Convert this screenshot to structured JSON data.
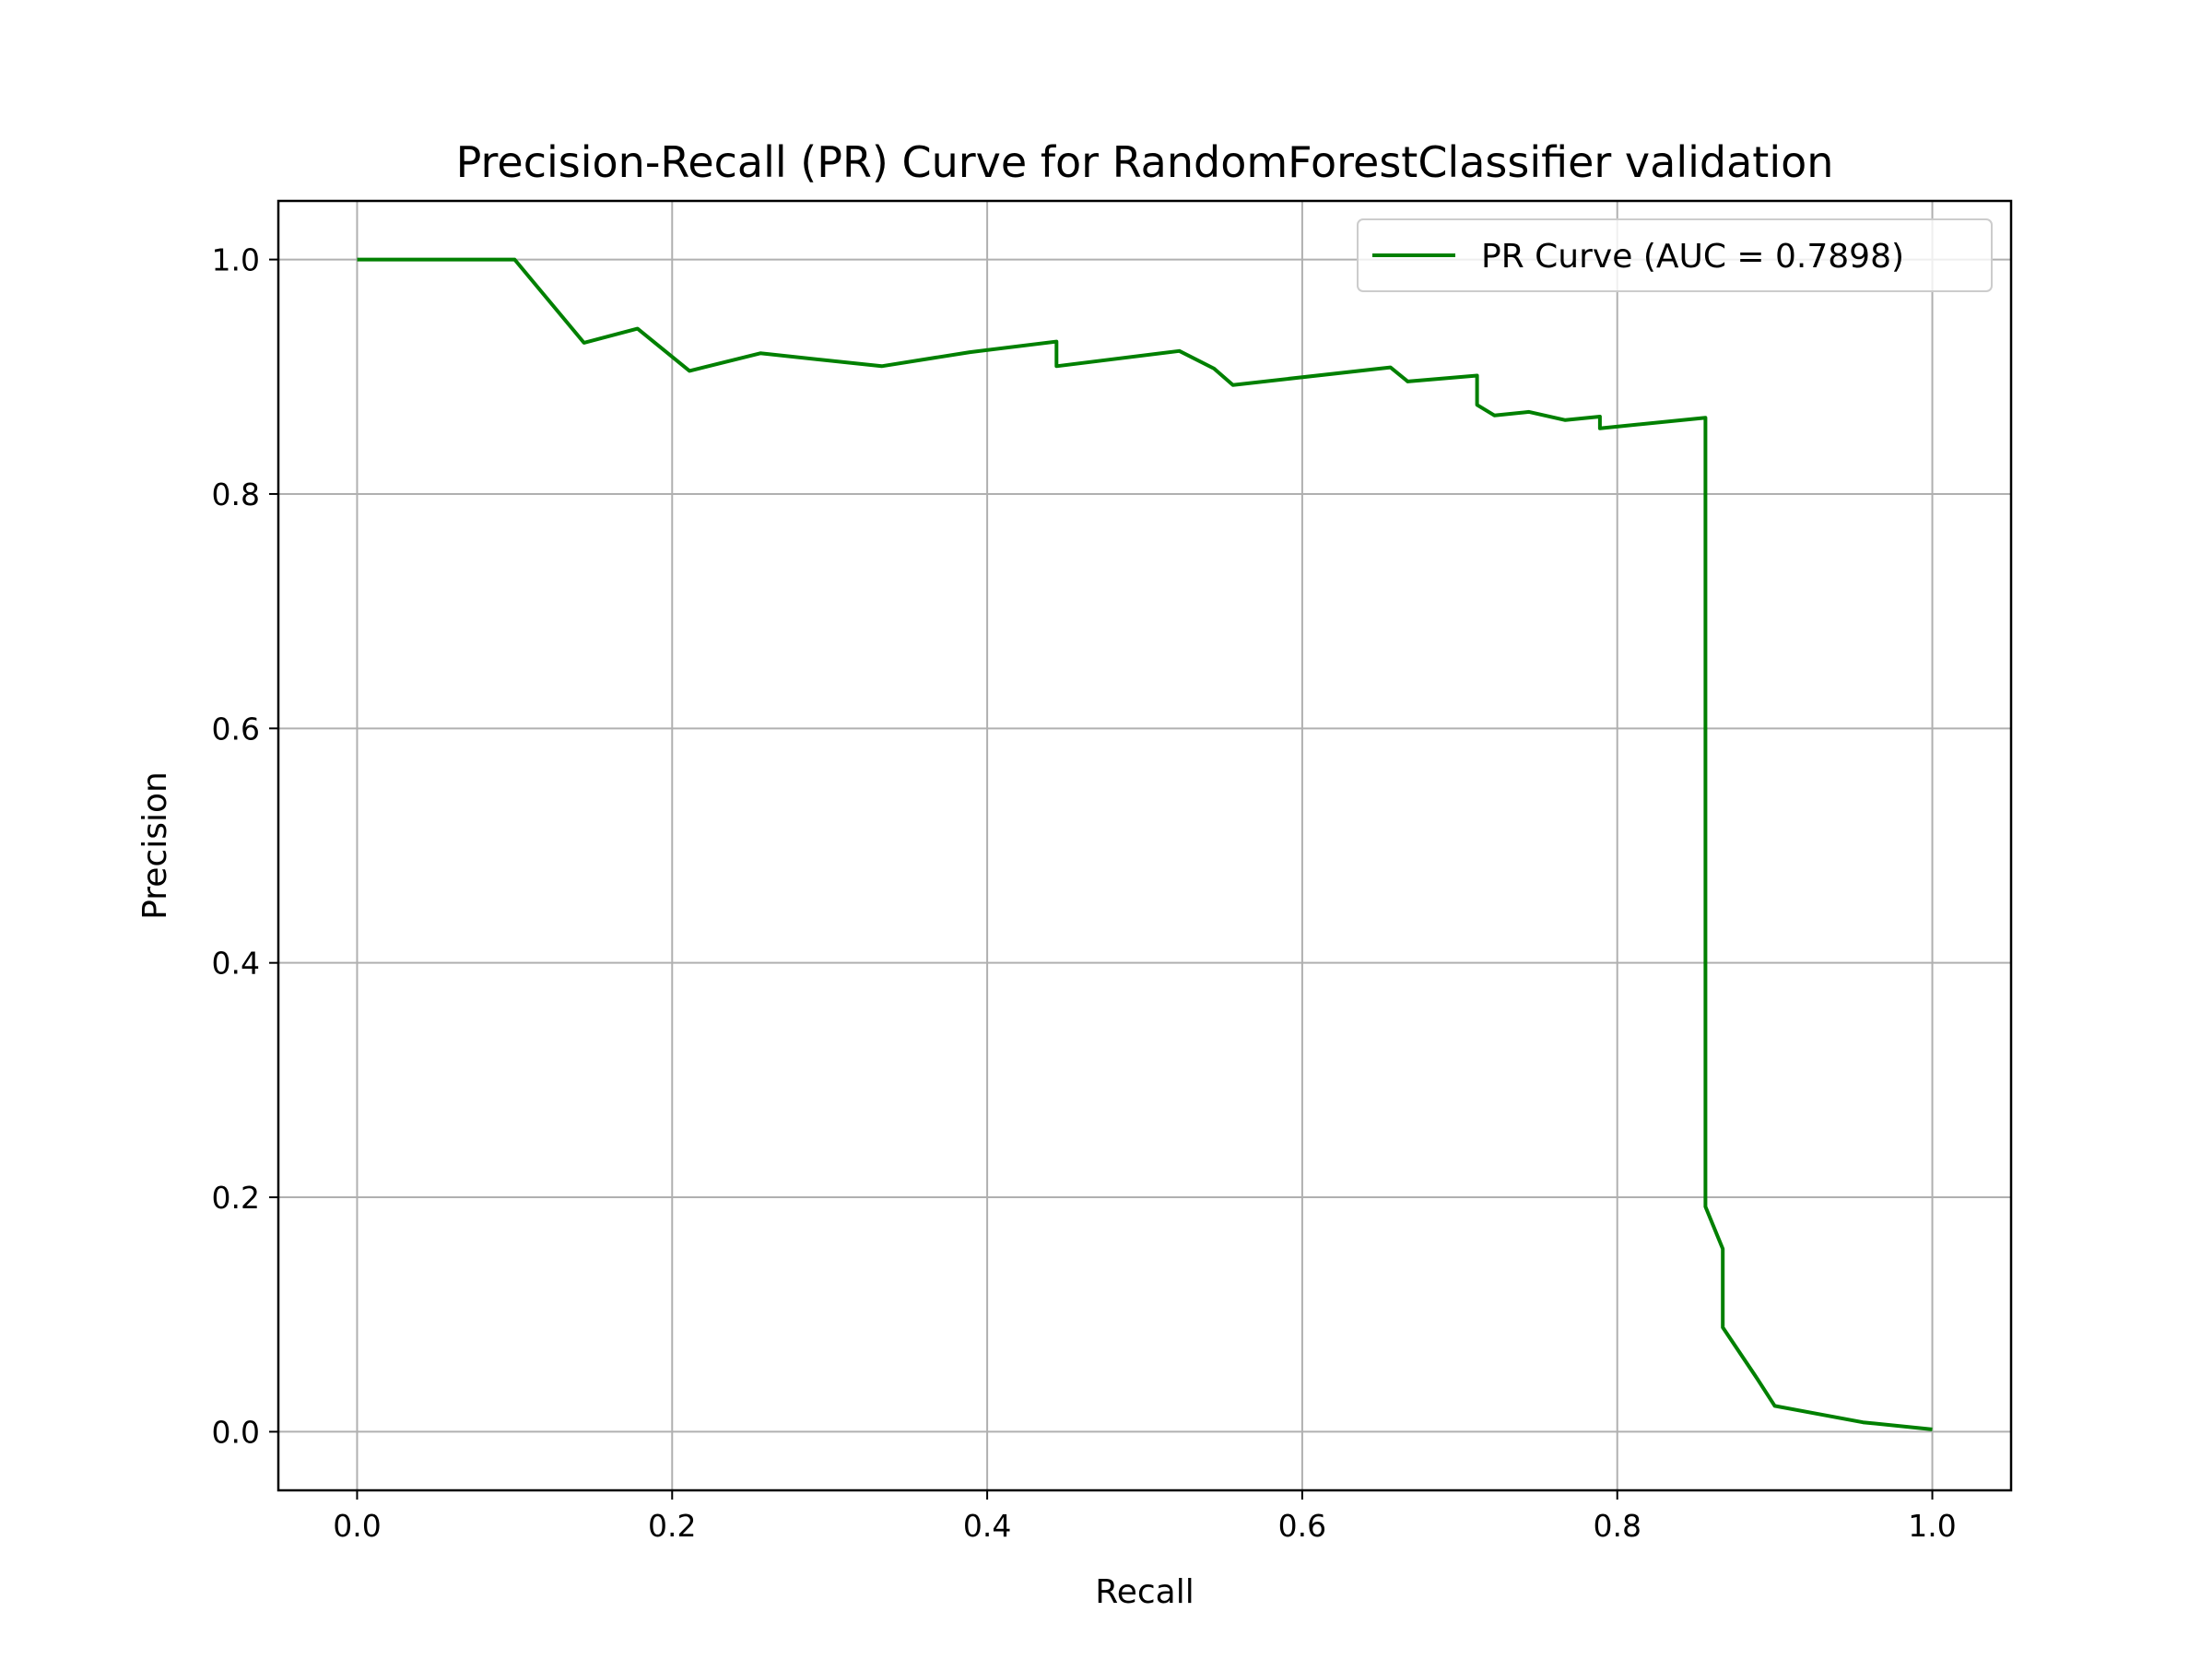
{
  "chart_data": {
    "type": "line",
    "title": "Precision-Recall (PR) Curve for RandomForestClassifier validation",
    "xlabel": "Recall",
    "ylabel": "Precision",
    "xlim": [
      -0.05,
      1.05
    ],
    "ylim": [
      -0.05,
      1.05
    ],
    "xticks": [
      "0.0",
      "0.2",
      "0.4",
      "0.6",
      "0.8",
      "1.0"
    ],
    "yticks": [
      "0.0",
      "0.2",
      "0.4",
      "0.6",
      "0.8",
      "1.0"
    ],
    "grid": true,
    "legend_position": "top-right",
    "series": [
      {
        "name": "PR Curve (AUC = 0.7898)",
        "color": "#008000",
        "x": [
          0.0,
          0.1,
          0.144,
          0.178,
          0.211,
          0.256,
          0.333,
          0.389,
          0.444,
          0.444,
          0.522,
          0.544,
          0.556,
          0.656,
          0.667,
          0.711,
          0.711,
          0.722,
          0.744,
          0.767,
          0.789,
          0.789,
          0.856,
          0.856,
          0.867,
          0.867,
          0.889,
          0.9,
          0.956,
          1.0
        ],
        "y": [
          1.0,
          1.0,
          0.929,
          0.941,
          0.905,
          0.92,
          0.909,
          0.921,
          0.93,
          0.909,
          0.922,
          0.907,
          0.893,
          0.908,
          0.896,
          0.901,
          0.876,
          0.867,
          0.87,
          0.863,
          0.866,
          0.856,
          0.865,
          0.192,
          0.156,
          0.089,
          0.045,
          0.022,
          0.008,
          0.002
        ]
      }
    ]
  }
}
